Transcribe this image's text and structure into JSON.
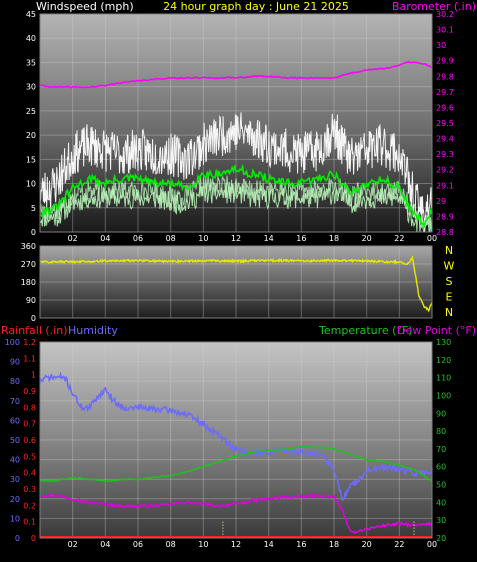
{
  "header": {
    "wind_title": "Windspeed (mph)",
    "center_title": "24 hour graph day : June 21 2025",
    "baro_title": "Barometer (.in)"
  },
  "colors": {
    "wind_title": "#ffffff",
    "center_title": "#ffff00",
    "baro": "#ff00ff",
    "wind_speed": "#00ee00",
    "wind_gust": "#f4f4f4",
    "wind_band": "#b8f4b8",
    "wind_dir": "#e8e800",
    "rain": "#ff2020",
    "humidity": "#6c6cf8",
    "temperature": "#20c020",
    "dew_point": "#e000e0",
    "compass": "#ffff00",
    "rain_spike": "#ffff80"
  },
  "x_ticks": [
    "02",
    "04",
    "06",
    "08",
    "10",
    "12",
    "14",
    "16",
    "18",
    "20",
    "22",
    "00"
  ],
  "compass": [
    "N",
    "W",
    "S",
    "E",
    "N"
  ],
  "panel2_labels": {
    "rainfall": "Rainfall (.in)",
    "humidity": "Humidity",
    "temperature": "Temperature (°F)",
    "dew_point": "Dew Point (°F)"
  },
  "chart_data": [
    {
      "type": "line",
      "title": "24 hour graph day : June 21 2025",
      "xlabel": "",
      "x_unit": "hour of day",
      "x_ticks": [
        "02",
        "04",
        "06",
        "08",
        "10",
        "12",
        "14",
        "16",
        "18",
        "20",
        "22",
        "00"
      ],
      "xlim": [
        0,
        24
      ],
      "y_left": {
        "label": "Windspeed (mph)",
        "lim": [
          0,
          45
        ],
        "ticks": [
          0,
          5,
          10,
          15,
          20,
          25,
          30,
          35,
          40,
          45
        ]
      },
      "y_right": {
        "label": "Barometer (.in)",
        "lim": [
          28.8,
          30.2
        ],
        "ticks": [
          28.8,
          28.9,
          29,
          29.1,
          29.2,
          29.3,
          29.4,
          29.5,
          29.6,
          29.7,
          29.8,
          29.9,
          30,
          30.1,
          30.2
        ]
      },
      "grid": true,
      "series": [
        {
          "axis": "left",
          "x": [
            0,
            1,
            2,
            3,
            4,
            5,
            6,
            7,
            8,
            9,
            10,
            11,
            12,
            13,
            14,
            15,
            16,
            17,
            18,
            19,
            20,
            21,
            22,
            23,
            23.5,
            24
          ],
          "values": [
            4,
            5,
            9,
            11,
            10,
            11,
            11,
            10,
            10,
            9,
            12,
            12,
            13,
            12,
            11,
            10,
            10,
            11,
            12,
            8,
            10,
            11,
            9,
            3,
            2,
            4
          ]
        },
        {
          "axis": "left",
          "x": [
            0,
            1,
            2,
            3,
            4,
            5,
            6,
            7,
            8,
            9,
            10,
            11,
            12,
            13,
            14,
            15,
            16,
            17,
            18,
            19,
            20,
            21,
            22,
            23,
            23.5,
            24
          ],
          "values": [
            8,
            10,
            16,
            18,
            17,
            16,
            17,
            16,
            16,
            15,
            18,
            20,
            21,
            20,
            18,
            17,
            16,
            17,
            21,
            15,
            17,
            18,
            16,
            6,
            4,
            7
          ]
        },
        {
          "axis": "left",
          "x": [
            0,
            1,
            2,
            3,
            4,
            5,
            6,
            7,
            8,
            9,
            10,
            11,
            12,
            13,
            14,
            15,
            16,
            17,
            18,
            19,
            20,
            21,
            22,
            23,
            23.5,
            24
          ],
          "values": [
            3,
            3,
            6,
            7,
            7,
            7,
            7,
            7,
            6,
            6,
            8,
            8,
            8,
            7,
            7,
            7,
            7,
            7,
            8,
            6,
            7,
            7,
            7,
            2,
            1,
            1
          ]
        },
        {
          "axis": "right",
          "x": [
            0,
            1,
            2,
            3,
            4,
            5,
            6,
            7,
            8,
            9,
            10,
            11,
            12,
            13,
            14,
            15,
            16,
            17,
            18,
            19,
            20,
            21,
            22,
            22.5,
            23,
            23.5,
            24
          ],
          "values": [
            29.74,
            29.73,
            29.73,
            29.73,
            29.74,
            29.76,
            29.77,
            29.78,
            29.79,
            29.79,
            29.79,
            29.79,
            29.79,
            29.8,
            29.8,
            29.79,
            29.79,
            29.79,
            29.79,
            29.82,
            29.84,
            29.85,
            29.87,
            29.89,
            29.89,
            29.88,
            29.86
          ]
        }
      ]
    },
    {
      "type": "line",
      "xlim": [
        0,
        24
      ],
      "y_left": {
        "lim": [
          0,
          360
        ],
        "ticks": [
          0,
          90,
          180,
          270,
          360
        ]
      },
      "y_right": {
        "ticks": [
          "N",
          "E",
          "S",
          "W",
          "N"
        ]
      },
      "grid": true,
      "series": [
        {
          "x": [
            0,
            2,
            4,
            6,
            8,
            10,
            12,
            14,
            16,
            18,
            20,
            21,
            22,
            22.5,
            22.8,
            23,
            23.2,
            23.5,
            23.8,
            24
          ],
          "values": [
            280,
            282,
            285,
            287,
            283,
            286,
            284,
            288,
            286,
            288,
            285,
            282,
            280,
            270,
            300,
            210,
            110,
            60,
            40,
            80
          ]
        }
      ]
    },
    {
      "type": "line",
      "xlim": [
        0,
        24
      ],
      "y_left": {
        "label": "Rainfall (.in)",
        "lim": [
          0,
          1.2
        ],
        "ticks": [
          0,
          0.1,
          0.2,
          0.3,
          0.4,
          0.5,
          0.6,
          0.7,
          0.8,
          0.9,
          1,
          1.1,
          1.2
        ]
      },
      "y_left2": {
        "label": "Humidity",
        "lim": [
          0,
          100
        ],
        "ticks": [
          0,
          10,
          20,
          30,
          40,
          50,
          60,
          70,
          80,
          90,
          100
        ]
      },
      "y_right": {
        "label": "Temperature (°F) / Dew Point (°F)",
        "lim": [
          20,
          130
        ],
        "ticks": [
          20,
          30,
          40,
          50,
          60,
          70,
          80,
          90,
          100,
          110,
          120,
          130
        ]
      },
      "grid": true,
      "series": [
        {
          "axis": "left2",
          "x": [
            0,
            0.5,
            1,
            1.5,
            2,
            2.5,
            3,
            3.5,
            4,
            4.5,
            5,
            5.5,
            6,
            6.5,
            7,
            8,
            9,
            10,
            11,
            12,
            13,
            14,
            15,
            16,
            16.5,
            17,
            17.5,
            18,
            18.5,
            19,
            20,
            21,
            22,
            23,
            24
          ],
          "values": [
            80,
            82,
            82,
            82,
            74,
            67,
            66,
            72,
            76,
            70,
            67,
            66,
            67,
            66,
            66,
            65,
            63,
            58,
            52,
            45,
            43,
            44,
            45,
            44,
            43,
            43,
            40,
            35,
            20,
            26,
            34,
            36,
            35,
            33,
            34
          ]
        },
        {
          "axis": "right",
          "x": [
            0,
            1,
            2,
            3,
            4,
            5,
            6,
            7,
            8,
            9,
            10,
            11,
            12,
            13,
            14,
            15,
            16,
            17,
            18,
            19,
            20,
            21,
            22,
            23,
            24
          ],
          "values": [
            52,
            52,
            54,
            53,
            52,
            53,
            53,
            54,
            55,
            57,
            60,
            63,
            66,
            68,
            69,
            70,
            71,
            71,
            70,
            67,
            64,
            63,
            61,
            58,
            52
          ]
        },
        {
          "axis": "right",
          "x": [
            0,
            1,
            2,
            3,
            4,
            5,
            6,
            7,
            8,
            9,
            10,
            11,
            12,
            13,
            14,
            15,
            16,
            17,
            18,
            18.5,
            19,
            20,
            21,
            22,
            23,
            24
          ],
          "values": [
            44,
            44,
            42,
            40,
            39,
            38,
            38,
            38,
            39,
            40,
            39,
            38,
            39,
            41,
            42,
            43,
            43,
            44,
            43,
            36,
            23,
            25,
            27,
            28,
            27,
            28
          ]
        },
        {
          "axis": "left",
          "x": [
            0,
            24
          ],
          "values": [
            0,
            0
          ]
        }
      ]
    }
  ]
}
